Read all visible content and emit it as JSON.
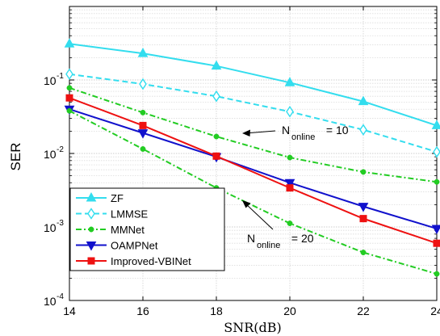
{
  "chart_data": {
    "type": "line",
    "xlabel": "SNR(dB)",
    "ylabel": "SER",
    "x": [
      14,
      16,
      18,
      20,
      22,
      24
    ],
    "xlim": [
      14,
      24
    ],
    "ylim": [
      0.0001,
      1
    ],
    "yscale": "log",
    "grid": true,
    "legend_position": "bottom-left",
    "xticks": [
      "14",
      "16",
      "18",
      "20",
      "22",
      "24"
    ],
    "yticks": [
      {
        "value": 0.1,
        "base": "10",
        "exp": "-1"
      },
      {
        "value": 0.01,
        "base": "10",
        "exp": "-2"
      },
      {
        "value": 0.001,
        "base": "10",
        "exp": "-3"
      },
      {
        "value": 0.0001,
        "base": "10",
        "exp": "-4"
      }
    ],
    "series": [
      {
        "name": "ZF",
        "color": "#33ddee",
        "dash": "solid",
        "marker": "triangle-up",
        "values": [
          0.31,
          0.23,
          0.155,
          0.092,
          0.051,
          0.024
        ]
      },
      {
        "name": "LMMSE",
        "color": "#33ddee",
        "dash": "dashed",
        "marker": "diamond",
        "values": [
          0.12,
          0.088,
          0.06,
          0.037,
          0.021,
          0.0105
        ]
      },
      {
        "name": "MMNet",
        "color": "#22cc22",
        "dash": "dashdot",
        "marker": "dot",
        "values": [
          0.078,
          0.036,
          0.017,
          0.0088,
          0.0056,
          0.0041
        ]
      },
      {
        "name": "OAMPNet",
        "color": "#1111cc",
        "dash": "solid",
        "marker": "triangle-down",
        "values": [
          0.04,
          0.019,
          0.009,
          0.004,
          0.0019,
          0.00095
        ]
      },
      {
        "name": "Improved-VBINet",
        "color": "#ee1111",
        "dash": "solid",
        "marker": "square",
        "values": [
          0.057,
          0.024,
          0.0092,
          0.0034,
          0.0013,
          0.0006
        ]
      },
      {
        "name": "",
        "color": "#22cc22",
        "dash": "dashdot",
        "marker": "dot",
        "values": [
          0.038,
          0.0115,
          0.0034,
          0.00112,
          0.00045,
          0.00023
        ]
      }
    ],
    "annotations": [
      {
        "main": "N",
        "sub": "online",
        "rest": " = 10"
      },
      {
        "main": "N",
        "sub": "online",
        "rest": " = 20"
      }
    ]
  }
}
